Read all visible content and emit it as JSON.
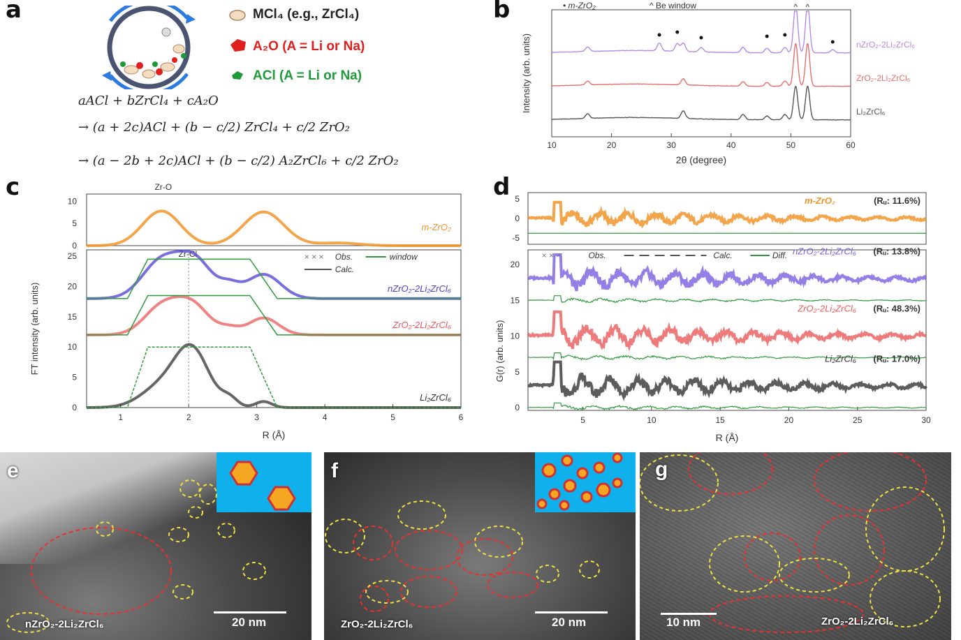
{
  "panels": {
    "a": {
      "label": "a",
      "legend": [
        {
          "text": "MCl₄ (e.g., ZrCl₄)",
          "color": "#111111"
        },
        {
          "text": "A₂O (A = Li or Na)",
          "color": "#e0201f"
        },
        {
          "text": "ACl (A = Li or Na)",
          "color": "#1e9a3a"
        }
      ],
      "equations": [
        "aACl + bZrCl₄ + cA₂O",
        "→ (a + 2c)ACl + (b − c/2) ZrCl₄ + c/2 ZrO₂",
        "→ (a − 2b + 2c)ACl + (b − c/2) A₂ZrCl₆ + c/2 ZrO₂"
      ]
    },
    "b": {
      "label": "b"
    },
    "c": {
      "label": "c"
    },
    "d": {
      "label": "d"
    },
    "e": {
      "label": "e",
      "scale": "20 nm",
      "sample": "nZrO₂-2Li₂ZrCl₆"
    },
    "f": {
      "label": "f",
      "scale": "20 nm",
      "sample": "ZrO₂-2Li₂ZrCl₆"
    },
    "g": {
      "label": "g",
      "scale": "10 nm",
      "sample": "ZrO₂-2Li₂ZrCl₆"
    }
  },
  "colors": {
    "purple": "#9b6be0",
    "red": "#e85a5a",
    "gray": "#555555",
    "orange": "#f0952c",
    "blue": "#4a3fcf",
    "green": "#2e9a3b",
    "yellow": "#e8d23a"
  },
  "chart_data": [
    {
      "id": "b",
      "type": "line",
      "xlabel": "2θ (degree)",
      "ylabel": "Intensity (arb. units)",
      "xlim": [
        10,
        60
      ],
      "xticks": [
        10,
        20,
        30,
        40,
        50,
        60
      ],
      "legend": [
        "• m-ZrO₂",
        "^ Be window"
      ],
      "series": [
        {
          "name": "nZrO₂-2Li₂ZrCl₆",
          "color": "#b58ae8",
          "offset": 2,
          "peaks": [
            [
              16,
              0.3
            ],
            [
              28,
              0.5
            ],
            [
              31,
              0.5
            ],
            [
              32,
              0.55
            ],
            [
              35,
              0.3
            ],
            [
              42,
              0.35
            ],
            [
              46,
              0.3
            ],
            [
              49,
              0.35
            ],
            [
              50.8,
              3.2
            ],
            [
              52.8,
              3.2
            ],
            [
              57,
              0.2
            ]
          ]
        },
        {
          "name": "ZrO₂-2Li₂ZrCl₆",
          "color": "#e86e6e",
          "offset": 1,
          "peaks": [
            [
              16,
              0.25
            ],
            [
              32,
              0.4
            ],
            [
              42,
              0.3
            ],
            [
              46,
              0.25
            ],
            [
              49,
              0.35
            ],
            [
              50.8,
              2.8
            ],
            [
              52.8,
              2.8
            ]
          ]
        },
        {
          "name": "Li₂ZrCl₆",
          "color": "#555555",
          "offset": 0,
          "peaks": [
            [
              16,
              0.3
            ],
            [
              32,
              0.5
            ],
            [
              42,
              0.35
            ],
            [
              46,
              0.25
            ],
            [
              49,
              0.35
            ],
            [
              50.8,
              2.2
            ],
            [
              52.8,
              2.2
            ]
          ]
        }
      ]
    },
    {
      "id": "c",
      "type": "line",
      "xlabel": "R (Å)",
      "ylabel": "FT intensity (arb. units)",
      "xlim": [
        0.5,
        6
      ],
      "xticks": [
        1,
        2,
        3,
        4,
        5,
        6
      ],
      "top": {
        "yticks": [
          0,
          5,
          10
        ],
        "label": "Zr-O",
        "series_name": "m-ZrO₂"
      },
      "bottom": {
        "yticks": [
          0,
          5,
          10,
          15,
          20,
          25
        ],
        "label": "Zr-Cl",
        "legend": [
          "Obs.",
          "Calc.",
          "window"
        ],
        "series": [
          {
            "name": "nZrO₂-2Li₂ZrCl₆",
            "offset": 18,
            "color": "#4a3fcf"
          },
          {
            "name": "ZrO₂-2Li₂ZrCl₆",
            "offset": 12,
            "color": "#e85a5a"
          },
          {
            "name": "Li₂ZrCl₆",
            "offset": 0,
            "color": "#333333"
          }
        ]
      }
    },
    {
      "id": "d",
      "type": "line",
      "xlabel": "R (Å)",
      "ylabel": "G(r) (arb. units)",
      "xlim": [
        1,
        30
      ],
      "xticks": [
        5,
        10,
        15,
        20,
        25,
        30
      ],
      "top": {
        "yticks": [
          -5,
          0,
          5
        ],
        "series_name": "m-ZrO₂",
        "rw": "(Rᵤ: 11.6%)"
      },
      "bottom": {
        "yticks": [
          0,
          5,
          10,
          15,
          20
        ],
        "legend": [
          "Obs.",
          "Calc.",
          "Diff."
        ],
        "series": [
          {
            "name": "nZrO₂-2Li₂ZrCl₆",
            "rw": "(Rᵤ: 13.8%)",
            "offset": 18,
            "color": "#7b5fe0"
          },
          {
            "name": "ZrO₂-2Li₂ZrCl₆",
            "rw": "(Rᵤ: 48.3%)",
            "offset": 10,
            "color": "#e85a5a"
          },
          {
            "name": "Li₂ZrCl₆",
            "rw": "(Rᵤ: 17.0%)",
            "offset": 3,
            "color": "#333333"
          }
        ]
      }
    }
  ]
}
